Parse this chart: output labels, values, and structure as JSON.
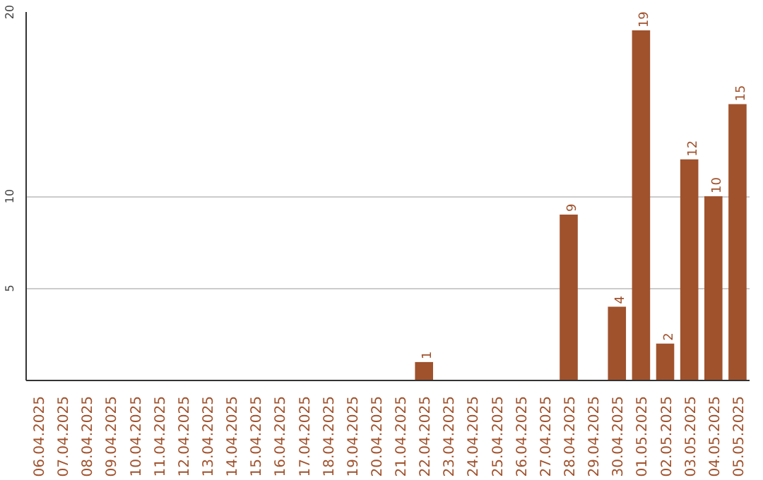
{
  "chart_data": {
    "type": "bar",
    "categories": [
      "06.04.2025",
      "07.04.2025",
      "08.04.2025",
      "09.04.2025",
      "10.04.2025",
      "11.04.2025",
      "12.04.2025",
      "13.04.2025",
      "14.04.2025",
      "15.04.2025",
      "16.04.2025",
      "17.04.2025",
      "18.04.2025",
      "19.04.2025",
      "20.04.2025",
      "21.04.2025",
      "22.04.2025",
      "23.04.2025",
      "24.04.2025",
      "25.04.2025",
      "26.04.2025",
      "27.04.2025",
      "28.04.2025",
      "29.04.2025",
      "30.04.2025",
      "01.05.2025",
      "02.05.2025",
      "03.05.2025",
      "04.05.2025",
      "05.05.2025"
    ],
    "values": [
      0,
      0,
      0,
      0,
      0,
      0,
      0,
      0,
      0,
      0,
      0,
      0,
      0,
      0,
      0,
      0,
      1,
      0,
      0,
      0,
      0,
      0,
      9,
      0,
      4,
      19,
      2,
      12,
      10,
      15
    ],
    "value_labels": [
      null,
      null,
      null,
      null,
      null,
      null,
      null,
      null,
      null,
      null,
      null,
      null,
      null,
      null,
      null,
      null,
      "1",
      null,
      null,
      null,
      null,
      null,
      "9",
      null,
      "4",
      "19",
      "2",
      "12",
      "10",
      "15"
    ],
    "color": "#a0522d",
    "ylim": [
      0,
      20
    ],
    "yticks": [
      5,
      10,
      20
    ],
    "grid": "y"
  }
}
